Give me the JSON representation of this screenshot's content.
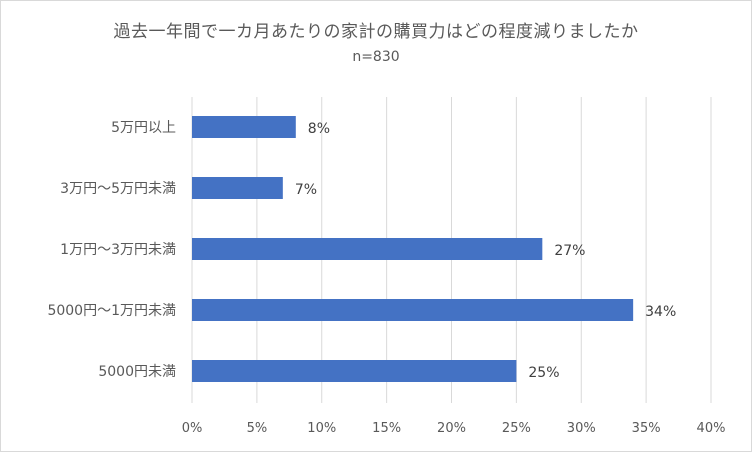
{
  "chart_data": {
    "type": "bar",
    "orientation": "horizontal",
    "title": "過去一年間で一カ月あたりの家計の購買力はどの程度減りましたか",
    "subtitle": "n=830",
    "categories": [
      "5万円以上",
      "3万円〜5万円未満",
      "1万円〜3万円未満",
      "5000円〜1万円未満",
      "5000円未満"
    ],
    "values": [
      8,
      7,
      27,
      34,
      25
    ],
    "data_labels": [
      "8%",
      "7%",
      "27%",
      "34%",
      "25%"
    ],
    "xlim": [
      0,
      40
    ],
    "xticks": [
      0,
      5,
      10,
      15,
      20,
      25,
      30,
      35,
      40
    ],
    "xtick_labels": [
      "0%",
      "5%",
      "10%",
      "15%",
      "20%",
      "25%",
      "30%",
      "35%",
      "40%"
    ],
    "grid": true,
    "legend": "none",
    "bar_color": "#4472c4",
    "grid_color": "#d9d9d9"
  }
}
